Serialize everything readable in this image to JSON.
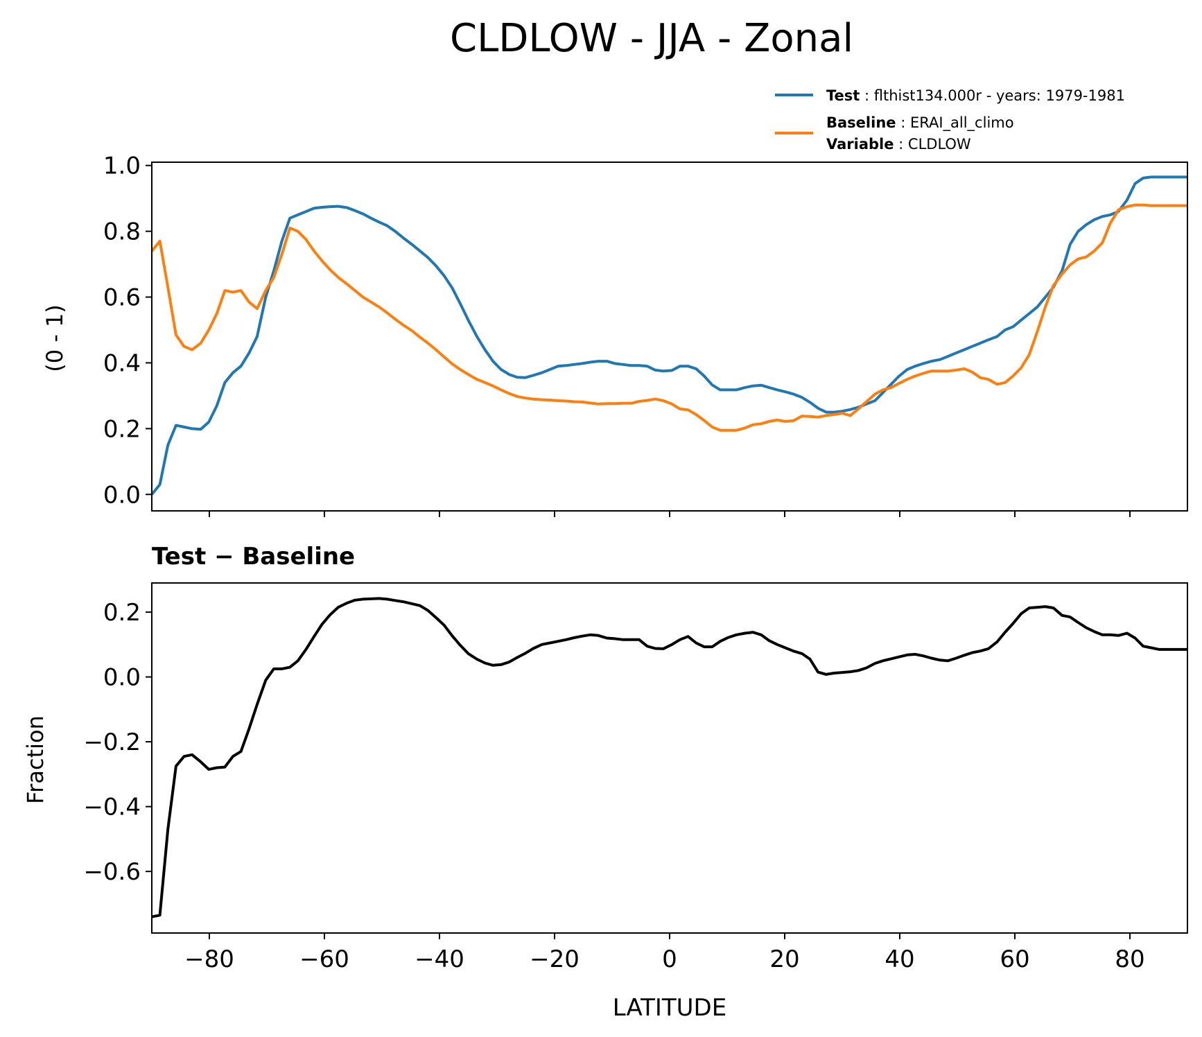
{
  "figure": {
    "title": "CLDLOW - JJA - Zonal",
    "legend": {
      "test_label": "Test",
      "test_text": "flthist134.000r - years: 1979-1981",
      "baseline_label": "Baseline",
      "baseline_text": "ERAI_all_climo",
      "variable_label": "Variable",
      "variable_text": "CLDLOW",
      "placement": "top-right, above upper panel"
    },
    "colors": {
      "test": "#1f77b4",
      "baseline": "#ff7f0e",
      "difference": "#000000"
    }
  },
  "chart_data": [
    {
      "type": "line",
      "title": "",
      "xlabel": "",
      "ylabel": "(0 - 1)",
      "xlim": [
        -90,
        90
      ],
      "ylim": [
        -0.05,
        1.01
      ],
      "yticks": [
        0.0,
        0.2,
        0.4,
        0.6,
        0.8,
        1.0
      ],
      "ytick_labels": [
        "0.0",
        "0.2",
        "0.4",
        "0.6",
        "0.8",
        "1.0"
      ],
      "xticks": [
        -80,
        -60,
        -40,
        -20,
        0,
        20,
        40,
        60,
        80
      ],
      "grid": false,
      "series": [
        {
          "name": "Test",
          "x": [
            -90,
            -88.6,
            -87.2,
            -85.8,
            -84.4,
            -83,
            -81.5,
            -80.1,
            -78.7,
            -77.3,
            -75.9,
            -74.5,
            -73.1,
            -71.7,
            -70.2,
            -68.8,
            -67.4,
            -66,
            -64.6,
            -63.2,
            -61.8,
            -60.4,
            -59,
            -57.6,
            -56.1,
            -54.7,
            -53.3,
            -51.9,
            -50.5,
            -49.1,
            -47.7,
            -46.3,
            -44.8,
            -43.4,
            -42,
            -40.6,
            -39.2,
            -37.8,
            -36.4,
            -35,
            -33.5,
            -32.1,
            -30.7,
            -29.3,
            -27.9,
            -26.5,
            -25.1,
            -23.7,
            -22.2,
            -20.8,
            -19.4,
            -18,
            -16.6,
            -15.2,
            -13.8,
            -12.4,
            -10.9,
            -9.5,
            -8.1,
            -6.7,
            -5.3,
            -3.9,
            -2.5,
            -1.1,
            0.4,
            1.8,
            3.2,
            4.6,
            6,
            7.4,
            8.8,
            10.2,
            11.6,
            13.1,
            14.5,
            15.9,
            17.3,
            18.7,
            20.1,
            21.5,
            23,
            24.4,
            25.8,
            27.2,
            28.6,
            30,
            31.4,
            32.8,
            34.2,
            35.7,
            37.1,
            38.5,
            39.9,
            41.3,
            42.7,
            44.1,
            45.5,
            47,
            48.4,
            49.8,
            51.2,
            52.6,
            54,
            55.4,
            56.9,
            58.3,
            59.7,
            61.1,
            62.5,
            63.9,
            65.3,
            66.7,
            68.2,
            69.6,
            71,
            72.4,
            73.8,
            75.2,
            76.6,
            78,
            79.5,
            80.9,
            82.3,
            83.7,
            85.1,
            86.5,
            87.9,
            90
          ],
          "y": [
            0,
            0.03,
            0.15,
            0.21,
            0.205,
            0.2,
            0.198,
            0.22,
            0.27,
            0.34,
            0.37,
            0.39,
            0.43,
            0.48,
            0.6,
            0.68,
            0.77,
            0.84,
            0.85,
            0.86,
            0.87,
            0.873,
            0.875,
            0.876,
            0.872,
            0.863,
            0.853,
            0.84,
            0.828,
            0.817,
            0.8,
            0.78,
            0.76,
            0.74,
            0.72,
            0.695,
            0.665,
            0.628,
            0.58,
            0.53,
            0.48,
            0.44,
            0.405,
            0.38,
            0.365,
            0.356,
            0.355,
            0.362,
            0.37,
            0.38,
            0.39,
            0.392,
            0.395,
            0.398,
            0.402,
            0.405,
            0.405,
            0.398,
            0.395,
            0.392,
            0.392,
            0.39,
            0.378,
            0.375,
            0.377,
            0.39,
            0.39,
            0.382,
            0.36,
            0.333,
            0.318,
            0.318,
            0.318,
            0.325,
            0.33,
            0.332,
            0.325,
            0.318,
            0.312,
            0.305,
            0.295,
            0.28,
            0.262,
            0.25,
            0.25,
            0.253,
            0.258,
            0.265,
            0.275,
            0.285,
            0.31,
            0.335,
            0.36,
            0.38,
            0.39,
            0.398,
            0.405,
            0.41,
            0.42,
            0.43,
            0.44,
            0.45,
            0.46,
            0.47,
            0.48,
            0.5,
            0.51,
            0.53,
            0.55,
            0.57,
            0.6,
            0.63,
            0.68,
            0.76,
            0.8,
            0.82,
            0.835,
            0.845,
            0.85,
            0.86,
            0.895,
            0.945,
            0.962,
            0.965,
            0.965,
            0.965,
            0.965,
            0.965
          ],
          "color": "#1f77b4"
        },
        {
          "name": "Baseline",
          "x": [
            -90,
            -88.6,
            -87.2,
            -85.8,
            -84.4,
            -83,
            -81.5,
            -80.1,
            -78.7,
            -77.3,
            -75.9,
            -74.5,
            -73.1,
            -71.7,
            -70.2,
            -68.8,
            -67.4,
            -66,
            -64.6,
            -63.2,
            -61.8,
            -60.4,
            -59,
            -57.6,
            -56.1,
            -54.7,
            -53.3,
            -51.9,
            -50.5,
            -49.1,
            -47.7,
            -46.3,
            -44.8,
            -43.4,
            -42,
            -40.6,
            -39.2,
            -37.8,
            -36.4,
            -35,
            -33.5,
            -32.1,
            -30.7,
            -29.3,
            -27.9,
            -26.5,
            -25.1,
            -23.7,
            -22.2,
            -20.8,
            -19.4,
            -18,
            -16.6,
            -15.2,
            -13.8,
            -12.4,
            -10.9,
            -9.5,
            -8.1,
            -6.7,
            -5.3,
            -3.9,
            -2.5,
            -1.1,
            0.4,
            1.8,
            3.2,
            4.6,
            6,
            7.4,
            8.8,
            10.2,
            11.6,
            13.1,
            14.5,
            15.9,
            17.3,
            18.7,
            20.1,
            21.5,
            23,
            24.4,
            25.8,
            27.2,
            28.6,
            30,
            31.4,
            32.8,
            34.2,
            35.7,
            37.1,
            38.5,
            39.9,
            41.3,
            42.7,
            44.1,
            45.5,
            47,
            48.4,
            49.8,
            51.2,
            52.6,
            54,
            55.4,
            56.9,
            58.3,
            59.7,
            61.1,
            62.5,
            63.9,
            65.3,
            66.7,
            68.2,
            69.6,
            71,
            72.4,
            73.8,
            75.2,
            76.6,
            78,
            79.5,
            80.9,
            82.3,
            83.7,
            85.1,
            86.5,
            87.9,
            90
          ],
          "y": [
            0.74,
            0.77,
            0.63,
            0.485,
            0.45,
            0.44,
            0.46,
            0.5,
            0.55,
            0.62,
            0.615,
            0.62,
            0.585,
            0.565,
            0.62,
            0.66,
            0.73,
            0.81,
            0.8,
            0.775,
            0.74,
            0.71,
            0.683,
            0.66,
            0.64,
            0.62,
            0.6,
            0.585,
            0.57,
            0.552,
            0.533,
            0.515,
            0.498,
            0.478,
            0.46,
            0.44,
            0.418,
            0.397,
            0.38,
            0.365,
            0.35,
            0.34,
            0.33,
            0.318,
            0.307,
            0.298,
            0.293,
            0.29,
            0.288,
            0.287,
            0.285,
            0.284,
            0.282,
            0.281,
            0.278,
            0.275,
            0.276,
            0.276,
            0.277,
            0.277,
            0.283,
            0.286,
            0.29,
            0.285,
            0.275,
            0.26,
            0.257,
            0.243,
            0.225,
            0.205,
            0.195,
            0.195,
            0.195,
            0.202,
            0.212,
            0.215,
            0.222,
            0.226,
            0.222,
            0.224,
            0.238,
            0.237,
            0.235,
            0.24,
            0.243,
            0.247,
            0.24,
            0.26,
            0.282,
            0.305,
            0.318,
            0.325,
            0.338,
            0.35,
            0.36,
            0.368,
            0.375,
            0.375,
            0.375,
            0.378,
            0.382,
            0.372,
            0.355,
            0.35,
            0.335,
            0.34,
            0.36,
            0.385,
            0.425,
            0.495,
            0.57,
            0.635,
            0.67,
            0.698,
            0.716,
            0.722,
            0.74,
            0.765,
            0.825,
            0.865,
            0.875,
            0.88,
            0.88,
            0.878,
            0.878,
            0.878,
            0.878,
            0.878
          ],
          "color": "#ff7f0e"
        }
      ]
    },
    {
      "type": "line",
      "title": "Test − Baseline",
      "xlabel": "LATITUDE",
      "ylabel": "Fraction",
      "xlim": [
        -90,
        90
      ],
      "ylim": [
        -0.79,
        0.29
      ],
      "yticks": [
        -0.6,
        -0.4,
        -0.2,
        0.0,
        0.2
      ],
      "ytick_labels": [
        "−0.6",
        "−0.4",
        "−0.2",
        "0.0",
        "0.2"
      ],
      "xticks": [
        -80,
        -60,
        -40,
        -20,
        0,
        20,
        40,
        60,
        80
      ],
      "xtick_labels": [
        "−80",
        "−60",
        "−40",
        "−20",
        "0",
        "20",
        "40",
        "60",
        "80"
      ],
      "grid": false,
      "series": [
        {
          "x": [
            -90,
            -88.6,
            -87.2,
            -85.8,
            -84.4,
            -83,
            -81.5,
            -80.1,
            -78.7,
            -77.3,
            -75.9,
            -74.5,
            -73.1,
            -71.7,
            -70.2,
            -68.8,
            -67.4,
            -66,
            -64.6,
            -63.2,
            -61.8,
            -60.4,
            -59,
            -57.6,
            -56.1,
            -54.7,
            -53.3,
            -51.9,
            -50.5,
            -49.1,
            -47.7,
            -46.3,
            -44.8,
            -43.4,
            -42,
            -40.6,
            -39.2,
            -37.8,
            -36.4,
            -35,
            -33.5,
            -32.1,
            -30.7,
            -29.3,
            -27.9,
            -26.5,
            -25.1,
            -23.7,
            -22.2,
            -20.8,
            -19.4,
            -18,
            -16.6,
            -15.2,
            -13.8,
            -12.4,
            -10.9,
            -9.5,
            -8.1,
            -6.7,
            -5.3,
            -3.9,
            -2.5,
            -1.1,
            0.4,
            1.8,
            3.2,
            4.6,
            6,
            7.4,
            8.8,
            10.2,
            11.6,
            13.1,
            14.5,
            15.9,
            17.3,
            18.7,
            20.1,
            21.5,
            23,
            24.4,
            25.8,
            27.2,
            28.6,
            30,
            31.4,
            32.8,
            34.2,
            35.7,
            37.1,
            38.5,
            39.9,
            41.3,
            42.7,
            44.1,
            45.5,
            47,
            48.4,
            49.8,
            51.2,
            52.6,
            54,
            55.4,
            56.9,
            58.3,
            59.7,
            61.1,
            62.5,
            63.9,
            65.3,
            66.7,
            68.2,
            69.6,
            71,
            72.4,
            73.8,
            75.2,
            76.6,
            78,
            79.5,
            80.9,
            82.3,
            83.7,
            85.1,
            86.5,
            87.9,
            90
          ],
          "y": [
            -0.74,
            -0.735,
            -0.47,
            -0.275,
            -0.245,
            -0.24,
            -0.262,
            -0.285,
            -0.28,
            -0.278,
            -0.245,
            -0.23,
            -0.16,
            -0.085,
            -0.01,
            0.025,
            0.025,
            0.03,
            0.05,
            0.085,
            0.125,
            0.163,
            0.192,
            0.215,
            0.228,
            0.237,
            0.24,
            0.241,
            0.242,
            0.24,
            0.236,
            0.232,
            0.226,
            0.22,
            0.205,
            0.183,
            0.16,
            0.127,
            0.098,
            0.072,
            0.055,
            0.043,
            0.036,
            0.038,
            0.046,
            0.06,
            0.073,
            0.088,
            0.1,
            0.105,
            0.11,
            0.115,
            0.121,
            0.126,
            0.13,
            0.128,
            0.12,
            0.118,
            0.115,
            0.115,
            0.115,
            0.095,
            0.088,
            0.087,
            0.1,
            0.115,
            0.125,
            0.105,
            0.093,
            0.093,
            0.11,
            0.122,
            0.13,
            0.135,
            0.138,
            0.13,
            0.112,
            0.1,
            0.09,
            0.08,
            0.072,
            0.055,
            0.015,
            0.008,
            0.012,
            0.014,
            0.016,
            0.02,
            0.028,
            0.042,
            0.05,
            0.056,
            0.062,
            0.068,
            0.07,
            0.065,
            0.058,
            0.052,
            0.05,
            0.058,
            0.067,
            0.075,
            0.08,
            0.087,
            0.108,
            0.138,
            0.165,
            0.195,
            0.213,
            0.215,
            0.217,
            0.213,
            0.19,
            0.185,
            0.168,
            0.152,
            0.14,
            0.13,
            0.13,
            0.128,
            0.135,
            0.12,
            0.095,
            0.09,
            0.085,
            0.085,
            0.085,
            0.085
          ],
          "color": "#000000"
        }
      ]
    }
  ]
}
